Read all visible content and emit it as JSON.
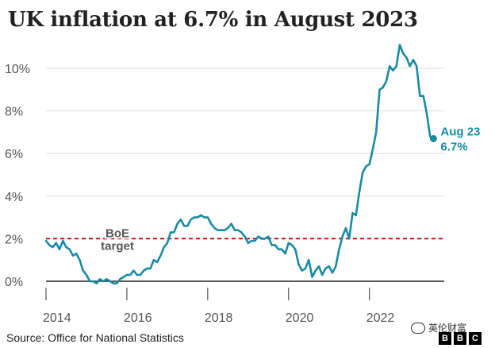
{
  "title": "UK inflation at 6.7% in August 2023",
  "source": "Source: Office for National Statistics",
  "watermark": "英伦财富",
  "logo": [
    "B",
    "B",
    "C"
  ],
  "colors": {
    "series": "#1a8aa3",
    "target": "#b80000",
    "zero_line": "#222222",
    "grid": "#dddddd",
    "text": "#222222",
    "axis_text": "#555555"
  },
  "chart_data": {
    "type": "line",
    "title": "UK inflation at 6.7% in August 2023",
    "xlabel": "",
    "ylabel": "",
    "xlim": [
      2014.0,
      2023.85
    ],
    "ylim": [
      -0.5,
      11
    ],
    "x_ticks": [
      2014,
      2016,
      2018,
      2020,
      2022
    ],
    "x_tick_labels": [
      "2014",
      "2016",
      "2018",
      "2020",
      "2022"
    ],
    "y_ticks": [
      0,
      2,
      4,
      6,
      8,
      10
    ],
    "y_tick_labels": [
      "0%",
      "2%",
      "4%",
      "6%",
      "8%",
      "10%"
    ],
    "grid": "horizontal",
    "reference_lines": [
      {
        "y": 2,
        "label_lines": [
          "BoE",
          "target"
        ],
        "style": "dashed"
      }
    ],
    "end_label": {
      "date": "Aug 23",
      "value": "6.7%"
    },
    "series": [
      {
        "x": [
          2014.0,
          2014.083,
          2014.167,
          2014.25,
          2014.333,
          2014.417,
          2014.5,
          2014.583,
          2014.667,
          2014.75,
          2014.833,
          2014.917,
          2015.0,
          2015.083,
          2015.167,
          2015.25,
          2015.333,
          2015.417,
          2015.5,
          2015.583,
          2015.667,
          2015.75,
          2015.833,
          2015.917,
          2016.0,
          2016.083,
          2016.167,
          2016.25,
          2016.333,
          2016.417,
          2016.5,
          2016.583,
          2016.667,
          2016.75,
          2016.833,
          2016.917,
          2017.0,
          2017.083,
          2017.167,
          2017.25,
          2017.333,
          2017.417,
          2017.5,
          2017.583,
          2017.667,
          2017.75,
          2017.833,
          2017.917,
          2018.0,
          2018.083,
          2018.167,
          2018.25,
          2018.333,
          2018.417,
          2018.5,
          2018.583,
          2018.667,
          2018.75,
          2018.833,
          2018.917,
          2019.0,
          2019.083,
          2019.167,
          2019.25,
          2019.333,
          2019.417,
          2019.5,
          2019.583,
          2019.667,
          2019.75,
          2019.833,
          2019.917,
          2020.0,
          2020.083,
          2020.167,
          2020.25,
          2020.333,
          2020.417,
          2020.5,
          2020.583,
          2020.667,
          2020.75,
          2020.833,
          2020.917,
          2021.0,
          2021.083,
          2021.167,
          2021.25,
          2021.333,
          2021.417,
          2021.5,
          2021.583,
          2021.667,
          2021.75,
          2021.833,
          2021.917,
          2022.0,
          2022.083,
          2022.167,
          2022.25,
          2022.333,
          2022.417,
          2022.5,
          2022.583,
          2022.667,
          2022.75,
          2022.833,
          2022.917,
          2023.0,
          2023.083,
          2023.167,
          2023.25,
          2023.333,
          2023.417,
          2023.5,
          2023.583
        ],
        "y": [
          1.9,
          1.7,
          1.6,
          1.8,
          1.5,
          1.9,
          1.6,
          1.5,
          1.2,
          1.3,
          1.0,
          0.5,
          0.3,
          0.0,
          0.0,
          -0.1,
          0.1,
          0.0,
          0.1,
          0.0,
          -0.1,
          -0.1,
          0.1,
          0.2,
          0.3,
          0.3,
          0.5,
          0.3,
          0.3,
          0.5,
          0.6,
          0.6,
          1.0,
          0.9,
          1.2,
          1.6,
          1.8,
          2.3,
          2.3,
          2.7,
          2.9,
          2.6,
          2.6,
          2.9,
          3.0,
          3.0,
          3.1,
          3.0,
          3.0,
          2.7,
          2.5,
          2.4,
          2.4,
          2.4,
          2.5,
          2.7,
          2.4,
          2.4,
          2.3,
          2.1,
          1.8,
          1.9,
          1.9,
          2.1,
          2.0,
          2.0,
          2.1,
          1.7,
          1.7,
          1.5,
          1.5,
          1.3,
          1.8,
          1.7,
          1.5,
          0.8,
          0.5,
          0.6,
          1.0,
          0.2,
          0.5,
          0.7,
          0.3,
          0.6,
          0.7,
          0.4,
          0.7,
          1.5,
          2.1,
          2.5,
          2.0,
          3.2,
          3.1,
          4.2,
          5.1,
          5.4,
          5.5,
          6.2,
          7.0,
          9.0,
          9.1,
          9.4,
          10.1,
          9.9,
          10.1,
          11.1,
          10.7,
          10.5,
          10.1,
          10.4,
          10.1,
          8.7,
          8.7,
          7.9,
          6.8,
          6.7
        ]
      }
    ]
  }
}
